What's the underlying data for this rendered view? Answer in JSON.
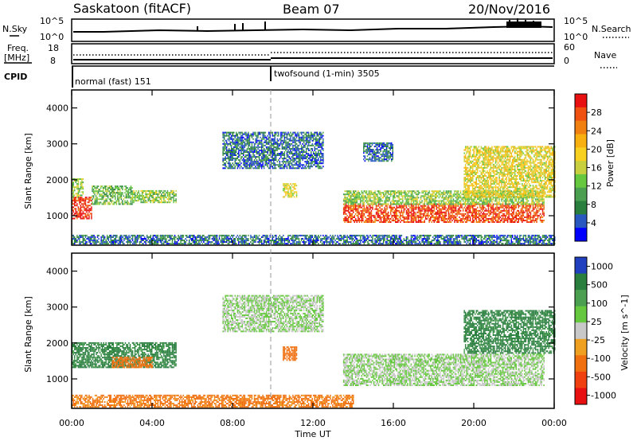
{
  "header": {
    "station": "Saskatoon (fitACF)",
    "beam": "Beam 07",
    "date": "20/Nov/2016"
  },
  "top_panels": {
    "nsky_label": "N.Sky",
    "nsky_ticks": [
      "10^5",
      "10^0"
    ],
    "nsearch_label": "N.Search",
    "nsearch_ticks": [
      "10^5",
      "10^0"
    ],
    "freq_label_1": "Freq.",
    "freq_label_2": "[MHz]",
    "freq_ticks": [
      "18",
      "8"
    ],
    "nave_label": "Nave",
    "nave_ticks": [
      "60",
      "0"
    ],
    "cpid_label": "CPID",
    "cpid_modes": [
      {
        "label": "normal (fast) 151",
        "start_hour": 0
      },
      {
        "label": "twofsound (1-min) 3505",
        "start_hour": 10
      }
    ]
  },
  "chart_data": [
    {
      "type": "heatmap",
      "title": "",
      "xlabel": "",
      "ylabel": "Slant Range [km]",
      "x_range_hours": [
        0,
        24
      ],
      "y_range_km": [
        180,
        4500
      ],
      "yticks": [
        1000,
        2000,
        3000,
        4000
      ],
      "colorbar": {
        "label": "Power [dB]",
        "ticks": [
          "28",
          "24",
          "20",
          "16",
          "12",
          "8",
          "4"
        ],
        "range": [
          0,
          32
        ],
        "colors": [
          "#0000ff",
          "#2858c0",
          "#2a7f3f",
          "#4aa050",
          "#66c83e",
          "#c8d040",
          "#f8d020",
          "#f8b010",
          "#f08010",
          "#f05010",
          "#e81010"
        ]
      },
      "echo_regions": [
        {
          "hours": [
            0.0,
            1.0
          ],
          "range_km": [
            900,
            1500
          ],
          "power_db": 30
        },
        {
          "hours": [
            0.0,
            0.6
          ],
          "range_km": [
            1500,
            2000
          ],
          "power_db": 14
        },
        {
          "hours": [
            1.0,
            3.0
          ],
          "range_km": [
            1300,
            1800
          ],
          "power_db": 12
        },
        {
          "hours": [
            3.0,
            5.2
          ],
          "range_km": [
            1350,
            1700
          ],
          "power_db": 14
        },
        {
          "hours": [
            7.5,
            12.5
          ],
          "range_km": [
            2300,
            3300
          ],
          "power_db": 6
        },
        {
          "hours": [
            10.5,
            11.2
          ],
          "range_km": [
            1500,
            1900
          ],
          "power_db": 18
        },
        {
          "hours": [
            13.5,
            23.5
          ],
          "range_km": [
            800,
            1300
          ],
          "power_db": 28
        },
        {
          "hours": [
            13.5,
            23.5
          ],
          "range_km": [
            1300,
            1700
          ],
          "power_db": 14
        },
        {
          "hours": [
            14.5,
            16.0
          ],
          "range_km": [
            2500,
            3000
          ],
          "power_db": 6
        },
        {
          "hours": [
            19.5,
            24.0
          ],
          "range_km": [
            1500,
            2900
          ],
          "power_db": 18
        },
        {
          "hours": [
            0.0,
            24.0
          ],
          "range_km": [
            200,
            450
          ],
          "power_db": 6
        }
      ]
    },
    {
      "type": "heatmap",
      "title": "",
      "xlabel": "Time UT",
      "ylabel": "Slant Range [km]",
      "x_range_hours": [
        0,
        24
      ],
      "y_range_km": [
        180,
        4500
      ],
      "yticks": [
        1000,
        2000,
        3000,
        4000
      ],
      "xticks": [
        "00:00",
        "04:00",
        "08:00",
        "12:00",
        "16:00",
        "20:00",
        "00:00"
      ],
      "colorbar": {
        "label": "Velocity [m s^-1]",
        "ticks": [
          "1000",
          "500",
          "100",
          "25",
          "-25",
          "-100",
          "-500",
          "-1000"
        ],
        "colors": [
          "#2040c0",
          "#2a7f3f",
          "#4aa050",
          "#66c83e",
          "#c8c8c8",
          "#f0a020",
          "#f07010",
          "#f04010",
          "#e81010"
        ]
      },
      "echo_regions": [
        {
          "hours": [
            0.0,
            5.2
          ],
          "range_km": [
            1300,
            2000
          ],
          "velocity": 150
        },
        {
          "hours": [
            2.0,
            4.0
          ],
          "range_km": [
            1300,
            1600
          ],
          "velocity": -300
        },
        {
          "hours": [
            7.5,
            12.5
          ],
          "range_km": [
            2300,
            3300
          ],
          "velocity": 0
        },
        {
          "hours": [
            10.5,
            11.2
          ],
          "range_km": [
            1500,
            1900
          ],
          "velocity": -300
        },
        {
          "hours": [
            13.5,
            23.5
          ],
          "range_km": [
            800,
            1700
          ],
          "velocity": 0
        },
        {
          "hours": [
            19.5,
            24.0
          ],
          "range_km": [
            1700,
            2900
          ],
          "velocity": 150
        },
        {
          "hours": [
            0.0,
            14.0
          ],
          "range_km": [
            200,
            550
          ],
          "velocity": -150
        }
      ]
    }
  ],
  "colors": {
    "frame": "#000000",
    "background": "#ffffff",
    "ground_scatter": "#c8c8c8"
  }
}
